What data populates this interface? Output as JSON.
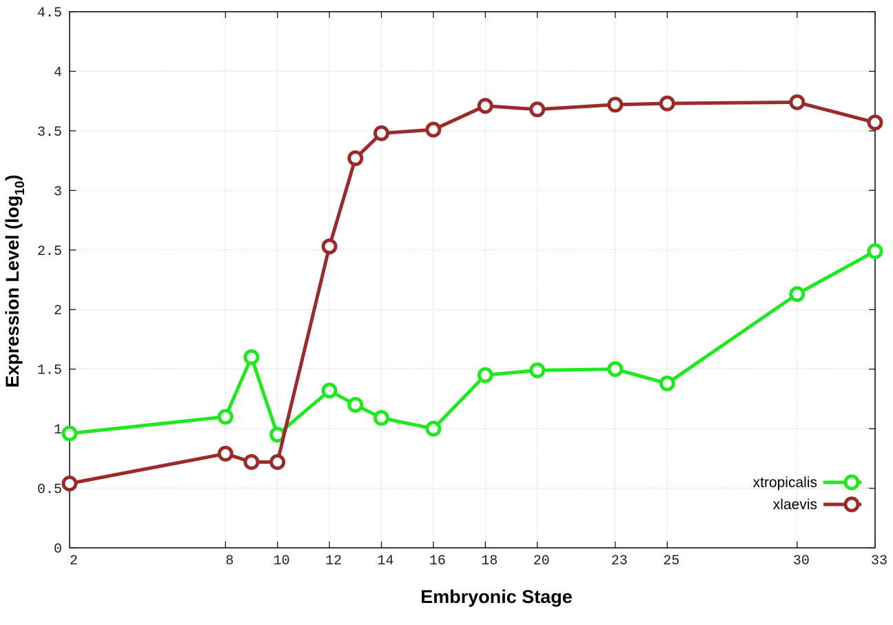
{
  "chart_data": {
    "type": "line",
    "xlabel": "Embryonic Stage",
    "ylabel": "Expression Level (log",
    "ylabel_sub": "10",
    "ylabel_suffix": ")",
    "xlim": [
      2,
      33
    ],
    "ylim": [
      0,
      4.5
    ],
    "x_ticks": [
      2,
      8,
      10,
      12,
      14,
      16,
      18,
      20,
      23,
      25,
      30,
      33
    ],
    "y_ticks": [
      0,
      0.5,
      1,
      1.5,
      2,
      2.5,
      3,
      3.5,
      4,
      4.5
    ],
    "y_tick_labels": [
      "0",
      "0.5",
      "1",
      "1.5",
      "2",
      "2.5",
      "3",
      "3.5",
      "4",
      "4.5"
    ],
    "grid": true,
    "legend_position": "bottom-right",
    "series": [
      {
        "name": "xtropicalis",
        "color": "#1ee81e",
        "x": [
          2,
          8,
          9,
          10,
          12,
          13,
          14,
          16,
          18,
          20,
          23,
          25,
          30,
          33
        ],
        "values": [
          0.96,
          1.1,
          1.6,
          0.95,
          1.32,
          1.2,
          1.09,
          1.0,
          1.45,
          1.49,
          1.5,
          1.38,
          2.13,
          2.49
        ]
      },
      {
        "name": "xlaevis",
        "color": "#9b2a2a",
        "x": [
          2,
          8,
          9,
          10,
          12,
          13,
          14,
          16,
          18,
          20,
          23,
          25,
          30,
          33
        ],
        "values": [
          0.54,
          0.79,
          0.72,
          0.72,
          2.53,
          3.27,
          3.48,
          3.51,
          3.71,
          3.68,
          3.72,
          3.73,
          3.74,
          3.57
        ]
      }
    ]
  }
}
